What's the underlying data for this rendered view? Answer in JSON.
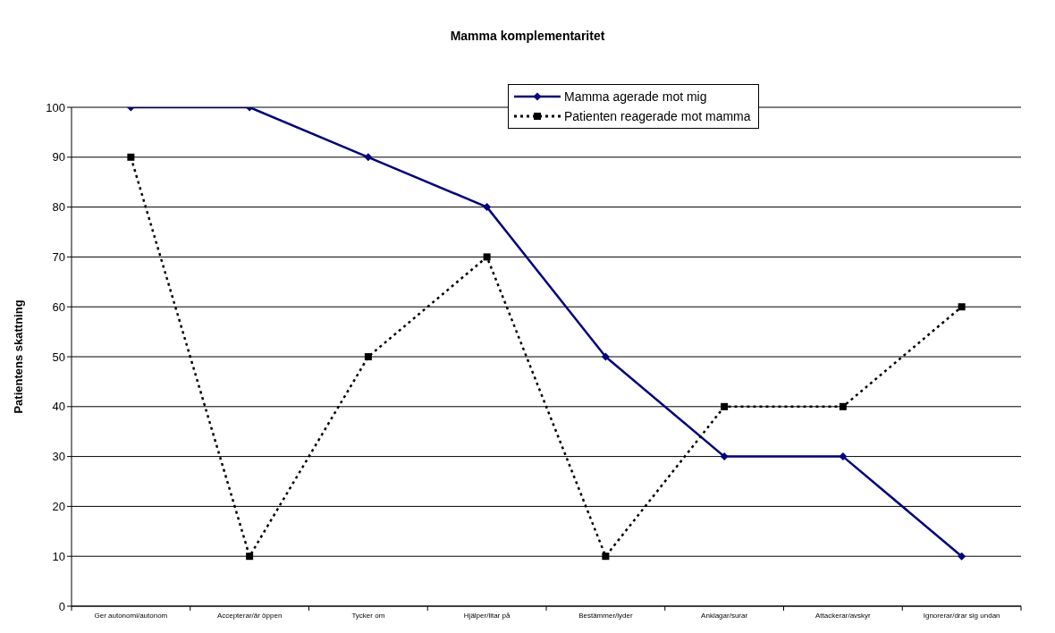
{
  "chart_data": {
    "type": "line",
    "title": "Mamma komplementaritet",
    "ylabel": "Patientens skattning",
    "categories": [
      "Ger autonomi/autonom",
      "Accepterar/är öppen",
      "Tycker om",
      "Hjälper/litar på",
      "Bestämmer/lyder",
      "Anklagar/surar",
      "Attackerar/avskyr",
      "Ignorerar/drar sig undan"
    ],
    "series": [
      {
        "name": "Mamma agerade mot mig",
        "color": "#000080",
        "marker": "diamond",
        "line_style": "solid",
        "values": [
          100,
          100,
          90,
          80,
          50,
          30,
          30,
          10
        ]
      },
      {
        "name": "Patienten reagerade mot mamma",
        "color": "#000000",
        "marker": "square",
        "line_style": "dotted",
        "values": [
          90,
          10,
          50,
          70,
          10,
          40,
          40,
          60
        ]
      }
    ],
    "ylim": [
      0,
      100
    ],
    "yticks": [
      0,
      10,
      20,
      30,
      40,
      50,
      60,
      70,
      80,
      90,
      100
    ],
    "grid": "y",
    "legend": "top right"
  }
}
